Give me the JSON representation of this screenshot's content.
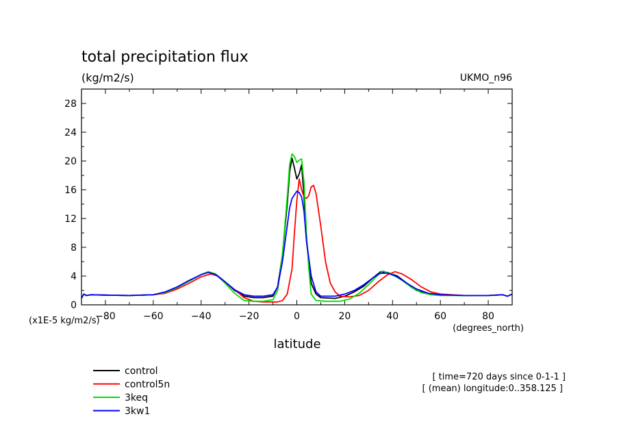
{
  "chart_data": {
    "type": "line",
    "title": "total precipitation flux",
    "subtitle": "(kg/m2/s)",
    "model_label": "UKMO_n96",
    "xlabel": "latitude",
    "x_units": "(degrees_north)",
    "y_units": "(x1E-5 kg/m2/s)",
    "xlim": [
      -90,
      90
    ],
    "ylim": [
      0,
      30
    ],
    "x_ticks": [
      -80,
      -60,
      -40,
      -20,
      0,
      20,
      40,
      60,
      80
    ],
    "y_ticks": [
      0,
      4,
      8,
      12,
      16,
      20,
      24,
      28
    ],
    "grid": false,
    "legend_position": "bottom-left",
    "annotations": [
      "[ time=720 days since 0-1-1 ]",
      "[ (mean) longitude:0..358.125 ]"
    ],
    "series": [
      {
        "name": "control",
        "color": "#000000",
        "points": [
          [
            -90,
            0.9
          ],
          [
            -89,
            1.5
          ],
          [
            -88,
            1.3
          ],
          [
            -86,
            1.4
          ],
          [
            -80,
            1.35
          ],
          [
            -70,
            1.3
          ],
          [
            -60,
            1.4
          ],
          [
            -55,
            1.7
          ],
          [
            -50,
            2.4
          ],
          [
            -45,
            3.3
          ],
          [
            -40,
            4.2
          ],
          [
            -37,
            4.6
          ],
          [
            -34,
            4.3
          ],
          [
            -30,
            3.2
          ],
          [
            -26,
            2.0
          ],
          [
            -22,
            1.2
          ],
          [
            -18,
            1.0
          ],
          [
            -14,
            1.0
          ],
          [
            -10,
            1.2
          ],
          [
            -8,
            2.5
          ],
          [
            -6,
            7.0
          ],
          [
            -4,
            14.0
          ],
          [
            -3,
            18.5
          ],
          [
            -2,
            20.4
          ],
          [
            -1,
            19.0
          ],
          [
            0,
            17.5
          ],
          [
            1,
            18.2
          ],
          [
            2,
            19.5
          ],
          [
            3,
            15.0
          ],
          [
            4,
            9.0
          ],
          [
            6,
            3.0
          ],
          [
            8,
            1.5
          ],
          [
            10,
            1.0
          ],
          [
            16,
            0.9
          ],
          [
            20,
            1.2
          ],
          [
            24,
            1.8
          ],
          [
            28,
            2.6
          ],
          [
            32,
            3.8
          ],
          [
            35,
            4.6
          ],
          [
            38,
            4.5
          ],
          [
            42,
            4.0
          ],
          [
            46,
            3.0
          ],
          [
            50,
            2.0
          ],
          [
            55,
            1.5
          ],
          [
            60,
            1.35
          ],
          [
            70,
            1.3
          ],
          [
            80,
            1.3
          ],
          [
            86,
            1.4
          ],
          [
            88,
            1.2
          ],
          [
            90,
            1.5
          ]
        ]
      },
      {
        "name": "control5n",
        "color": "#ff0000",
        "points": [
          [
            -90,
            1.0
          ],
          [
            -89,
            1.5
          ],
          [
            -88,
            1.3
          ],
          [
            -86,
            1.4
          ],
          [
            -80,
            1.35
          ],
          [
            -70,
            1.3
          ],
          [
            -60,
            1.4
          ],
          [
            -55,
            1.6
          ],
          [
            -50,
            2.2
          ],
          [
            -45,
            3.0
          ],
          [
            -40,
            3.9
          ],
          [
            -36,
            4.3
          ],
          [
            -33,
            4.0
          ],
          [
            -30,
            3.2
          ],
          [
            -26,
            2.1
          ],
          [
            -22,
            1.0
          ],
          [
            -18,
            0.5
          ],
          [
            -14,
            0.4
          ],
          [
            -8,
            0.4
          ],
          [
            -6,
            0.6
          ],
          [
            -4,
            1.5
          ],
          [
            -2,
            5.0
          ],
          [
            -1,
            10.0
          ],
          [
            0,
            14.5
          ],
          [
            1,
            17.5
          ],
          [
            2,
            16.0
          ],
          [
            3,
            15.0
          ],
          [
            4,
            14.8
          ],
          [
            5,
            15.2
          ],
          [
            6,
            16.4
          ],
          [
            7,
            16.6
          ],
          [
            8,
            15.5
          ],
          [
            10,
            11.0
          ],
          [
            12,
            6.0
          ],
          [
            14,
            3.0
          ],
          [
            16,
            1.8
          ],
          [
            18,
            1.2
          ],
          [
            22,
            1.1
          ],
          [
            26,
            1.3
          ],
          [
            30,
            2.0
          ],
          [
            34,
            3.2
          ],
          [
            38,
            4.2
          ],
          [
            41,
            4.6
          ],
          [
            44,
            4.3
          ],
          [
            48,
            3.5
          ],
          [
            52,
            2.5
          ],
          [
            56,
            1.8
          ],
          [
            60,
            1.5
          ],
          [
            70,
            1.3
          ],
          [
            80,
            1.3
          ],
          [
            86,
            1.4
          ],
          [
            88,
            1.2
          ],
          [
            90,
            1.5
          ]
        ]
      },
      {
        "name": "3keq",
        "color": "#00dd00",
        "points": [
          [
            -90,
            0.9
          ],
          [
            -89,
            1.5
          ],
          [
            -88,
            1.3
          ],
          [
            -86,
            1.4
          ],
          [
            -80,
            1.35
          ],
          [
            -70,
            1.3
          ],
          [
            -60,
            1.4
          ],
          [
            -55,
            1.7
          ],
          [
            -50,
            2.4
          ],
          [
            -45,
            3.3
          ],
          [
            -40,
            4.2
          ],
          [
            -37,
            4.6
          ],
          [
            -34,
            4.3
          ],
          [
            -30,
            3.0
          ],
          [
            -26,
            1.6
          ],
          [
            -22,
            0.6
          ],
          [
            -18,
            0.5
          ],
          [
            -14,
            0.5
          ],
          [
            -10,
            0.7
          ],
          [
            -8,
            2.0
          ],
          [
            -6,
            7.0
          ],
          [
            -4,
            15.0
          ],
          [
            -3,
            19.5
          ],
          [
            -2,
            21.0
          ],
          [
            -1,
            20.6
          ],
          [
            0,
            19.8
          ],
          [
            1,
            20.1
          ],
          [
            2,
            20.3
          ],
          [
            3,
            17.0
          ],
          [
            4,
            10.0
          ],
          [
            5,
            5.0
          ],
          [
            6,
            1.5
          ],
          [
            8,
            0.6
          ],
          [
            12,
            0.5
          ],
          [
            18,
            0.5
          ],
          [
            22,
            0.8
          ],
          [
            26,
            1.6
          ],
          [
            30,
            2.8
          ],
          [
            34,
            4.2
          ],
          [
            36,
            4.7
          ],
          [
            40,
            4.2
          ],
          [
            44,
            3.4
          ],
          [
            48,
            2.4
          ],
          [
            52,
            1.7
          ],
          [
            56,
            1.4
          ],
          [
            60,
            1.3
          ],
          [
            70,
            1.3
          ],
          [
            80,
            1.3
          ],
          [
            86,
            1.4
          ],
          [
            88,
            1.2
          ],
          [
            90,
            1.5
          ]
        ]
      },
      {
        "name": "3kw1",
        "color": "#0000ff",
        "points": [
          [
            -90,
            1.0
          ],
          [
            -89,
            1.5
          ],
          [
            -88,
            1.3
          ],
          [
            -86,
            1.4
          ],
          [
            -80,
            1.35
          ],
          [
            -70,
            1.3
          ],
          [
            -60,
            1.4
          ],
          [
            -55,
            1.8
          ],
          [
            -50,
            2.5
          ],
          [
            -45,
            3.4
          ],
          [
            -40,
            4.2
          ],
          [
            -37,
            4.5
          ],
          [
            -34,
            4.2
          ],
          [
            -30,
            3.2
          ],
          [
            -26,
            2.1
          ],
          [
            -22,
            1.4
          ],
          [
            -18,
            1.2
          ],
          [
            -14,
            1.2
          ],
          [
            -10,
            1.4
          ],
          [
            -8,
            2.5
          ],
          [
            -6,
            6.0
          ],
          [
            -4,
            11.0
          ],
          [
            -3,
            13.5
          ],
          [
            -2,
            14.8
          ],
          [
            -1,
            15.3
          ],
          [
            0,
            15.8
          ],
          [
            1,
            15.6
          ],
          [
            2,
            15.0
          ],
          [
            3,
            13.0
          ],
          [
            4,
            9.0
          ],
          [
            6,
            4.0
          ],
          [
            8,
            1.8
          ],
          [
            10,
            1.2
          ],
          [
            16,
            1.2
          ],
          [
            20,
            1.5
          ],
          [
            24,
            2.0
          ],
          [
            28,
            2.8
          ],
          [
            32,
            3.8
          ],
          [
            35,
            4.4
          ],
          [
            38,
            4.4
          ],
          [
            42,
            3.9
          ],
          [
            46,
            3.0
          ],
          [
            50,
            2.2
          ],
          [
            55,
            1.6
          ],
          [
            60,
            1.4
          ],
          [
            70,
            1.3
          ],
          [
            80,
            1.3
          ],
          [
            86,
            1.4
          ],
          [
            88,
            1.2
          ],
          [
            90,
            1.5
          ]
        ]
      }
    ]
  }
}
